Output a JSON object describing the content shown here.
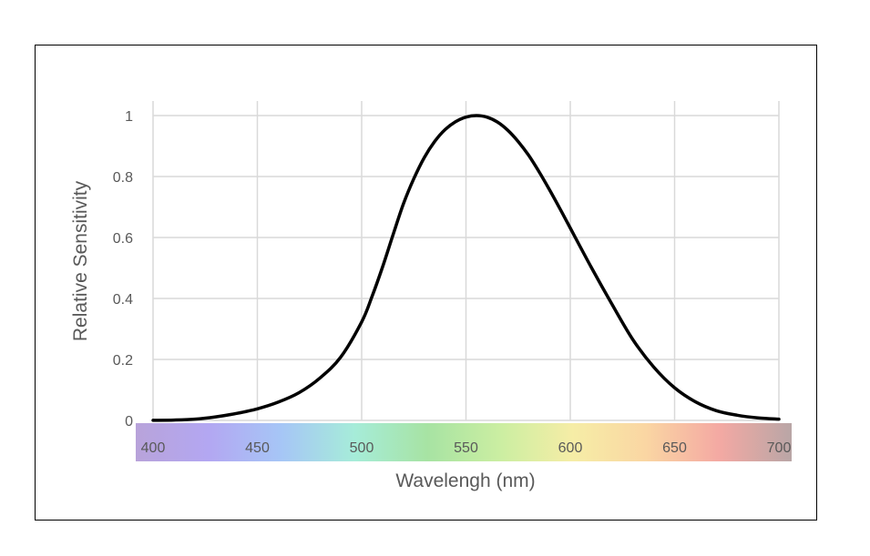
{
  "chart_data": {
    "type": "line",
    "title": "",
    "xlabel": "Wavelengh (nm)",
    "ylabel": "Relative Sensitivity",
    "xlim": [
      400,
      700
    ],
    "ylim": [
      0,
      1
    ],
    "x_ticks": [
      400,
      450,
      500,
      550,
      600,
      650,
      700
    ],
    "x_tick_labels": [
      "400",
      "450",
      "500",
      "550",
      "600",
      "650",
      "700"
    ],
    "y_ticks": [
      0,
      0.2,
      0.4,
      0.6,
      0.8,
      1
    ],
    "y_tick_labels": [
      "0",
      "0.2",
      "0.4",
      "0.6",
      "0.8",
      "1"
    ],
    "grid": true,
    "legend": "none",
    "series": [
      {
        "color": "#000000",
        "x": [
          400,
          410,
          420,
          430,
          440,
          450,
          460,
          470,
          480,
          490,
          500,
          505,
          510,
          515,
          520,
          525,
          530,
          535,
          540,
          545,
          550,
          555,
          560,
          565,
          570,
          575,
          580,
          585,
          590,
          595,
          600,
          610,
          620,
          630,
          640,
          650,
          660,
          670,
          680,
          690,
          700
        ],
        "y": [
          0.0004,
          0.0012,
          0.004,
          0.0116,
          0.023,
          0.038,
          0.06,
          0.091,
          0.139,
          0.208,
          0.323,
          0.407,
          0.503,
          0.608,
          0.71,
          0.793,
          0.862,
          0.915,
          0.954,
          0.98,
          0.995,
          1.0,
          0.995,
          0.979,
          0.952,
          0.915,
          0.87,
          0.816,
          0.757,
          0.695,
          0.631,
          0.503,
          0.381,
          0.265,
          0.175,
          0.107,
          0.061,
          0.032,
          0.017,
          0.0082,
          0.0041
        ]
      }
    ],
    "spectrum_bar_colors": [
      "#b8a3da",
      "#b3a7f2",
      "#a6c6f6",
      "#a6ecd9",
      "#a7e3a3",
      "#cbeea2",
      "#f6eda6",
      "#fad6a3",
      "#f4a9a3",
      "#b9a6a6"
    ]
  }
}
